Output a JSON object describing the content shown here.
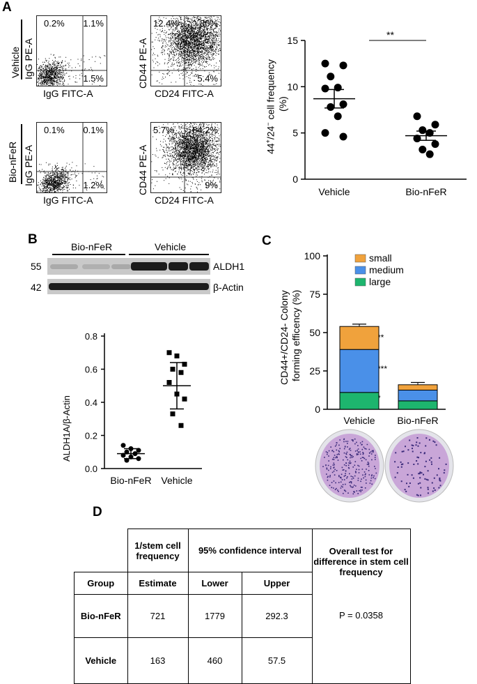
{
  "panel_labels": {
    "a": "A",
    "b": "B",
    "c": "C",
    "d": "D"
  },
  "panel_a": {
    "row_labels": [
      "Vehicle",
      "Bio-nFeR"
    ],
    "plots": [
      {
        "ylabel": "IgG PE-A",
        "xlabel": "IgG FITC-A",
        "ul": "0.2%",
        "ur": "1.1%",
        "lr": "1.5%"
      },
      {
        "ylabel": "CD44 PE-A",
        "xlabel": "CD24 FITC-A",
        "ul": "12.4%",
        "ur": "80%",
        "lr": "5.4%"
      },
      {
        "ylabel": "IgG PE-A",
        "xlabel": "IgG FITC-A",
        "ul": "0.1%",
        "ur": "0.1%",
        "lr": "1.2%"
      },
      {
        "ylabel": "CD44 PE-A",
        "xlabel": "CD24 FITC-A",
        "ul": "5.7%",
        "ur": "84.2%",
        "lr": "9%"
      }
    ],
    "freq_plot": {
      "ylabel": "44⁺/24⁻ cell frequency (%)",
      "ylabel_main": "44",
      "ylabel_sup1": "+",
      "ylabel_mid": "/24",
      "ylabel_sup2": "−",
      "ylabel_rest": " cell frequency",
      "ylabel_unit": "(%)",
      "significance": "**",
      "ticks": [
        "15",
        "10",
        "5",
        "0"
      ]
    }
  },
  "panel_b": {
    "lanes_left": "Bio-nFeR",
    "lanes_right": "Vehicle",
    "mw_top": "55",
    "mw_bottom": "42",
    "band_top": "ALDH1",
    "band_bottom": "β-Actin",
    "ylabel": "ALDH1A/β-Actin",
    "ticks": [
      "0.8",
      "0.6",
      "0.4",
      "0.2",
      "0.0"
    ]
  },
  "panel_c": {
    "ylabel_1": "CD44+/CD24- Colony",
    "ylabel_2": "forming efficency (%)",
    "ticks": [
      "100",
      "75",
      "50",
      "25",
      "0"
    ],
    "legend": [
      "small",
      "medium",
      "large"
    ],
    "sig": [
      "**",
      "***",
      "*"
    ]
  },
  "panel_d": {
    "h_inv": "1/stem cell frequency",
    "h_ci": "95% confidence interval",
    "h_overall": "Overall test for difference in stem cell frequency",
    "h_group": "Group",
    "h_estimate": "Estimate",
    "h_lower": "Lower",
    "h_upper": "Upper",
    "rows": [
      {
        "group": "Bio-nFeR",
        "estimate": "721",
        "lower": "1779",
        "upper": "292.3"
      },
      {
        "group": "Vehicle",
        "estimate": "163",
        "lower": "460",
        "upper": "57.5"
      }
    ],
    "pvalue": "P = 0.0358"
  },
  "chart_data": [
    {
      "type": "scatter",
      "title": "",
      "xlabel": "",
      "ylabel": "44+/24- cell frequency (%)",
      "categories": [
        "Vehicle",
        "Bio-nFeR"
      ],
      "ylim": [
        0,
        15
      ],
      "series": [
        {
          "name": "Vehicle",
          "values": [
            12.5,
            12.3,
            11.1,
            9.9,
            9.8,
            8.1,
            7.8,
            6.8,
            5.0,
            4.6
          ],
          "mean": 8.7,
          "sem": 1.0
        },
        {
          "name": "Bio-nFeR",
          "values": [
            6.8,
            5.9,
            5.3,
            5.0,
            4.4,
            3.8,
            3.2,
            2.7
          ],
          "mean": 4.7,
          "sem": 0.5
        }
      ]
    },
    {
      "type": "scatter",
      "title": "",
      "xlabel": "",
      "ylabel": "ALDH1A/β-Actin",
      "categories": [
        "Bio-nFeR",
        "Vehicle"
      ],
      "ylim": [
        0,
        0.8
      ],
      "series": [
        {
          "name": "Bio-nFeR",
          "values": [
            0.14,
            0.12,
            0.11,
            0.1,
            0.09,
            0.08,
            0.07,
            0.06,
            0.05
          ],
          "mean": 0.09,
          "sd": 0.03
        },
        {
          "name": "Vehicle",
          "values": [
            0.7,
            0.68,
            0.63,
            0.6,
            0.58,
            0.52,
            0.45,
            0.42,
            0.33,
            0.26
          ],
          "mean": 0.5,
          "sd": 0.14
        }
      ]
    },
    {
      "type": "bar",
      "stacked": true,
      "title": "",
      "xlabel": "",
      "ylabel": "CD44+/CD24- Colony forming efficency (%)",
      "categories": [
        "Vehicle",
        "Bio-nFeR"
      ],
      "ylim": [
        0,
        100
      ],
      "series": [
        {
          "name": "large",
          "values": [
            11,
            5.5
          ],
          "color": "#1db56e"
        },
        {
          "name": "medium",
          "values": [
            28,
            7
          ],
          "color": "#4a90e8"
        },
        {
          "name": "small",
          "values": [
            15,
            3.5
          ],
          "color": "#f0a23c"
        }
      ]
    }
  ]
}
